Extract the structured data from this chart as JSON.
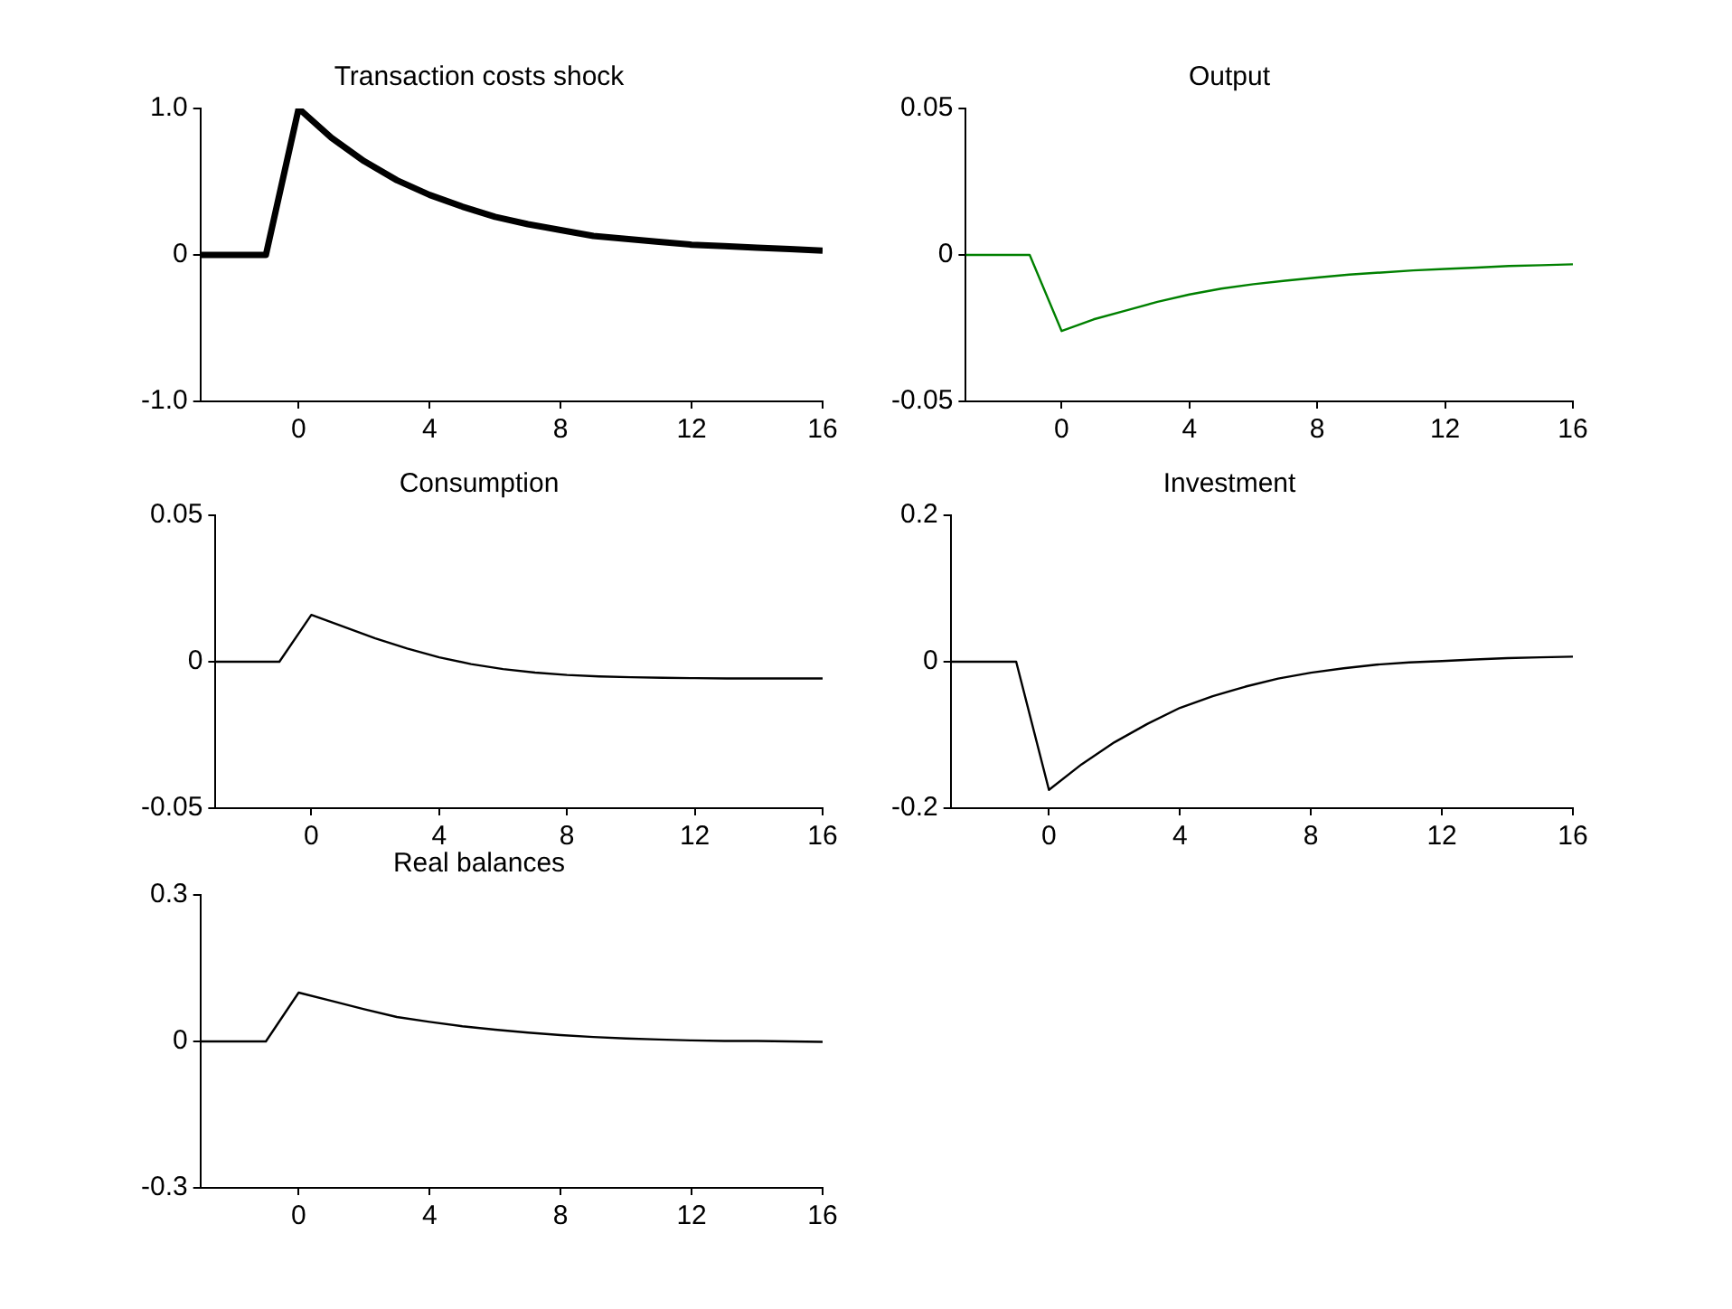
{
  "chart_data": [
    {
      "type": "line",
      "title": "Transaction costs shock",
      "x": [
        -3,
        -2,
        -1,
        0,
        1,
        2,
        3,
        4,
        5,
        6,
        7,
        8,
        9,
        10,
        11,
        12,
        13,
        14,
        15,
        16
      ],
      "values": [
        0,
        0,
        0,
        1.0,
        0.8,
        0.64,
        0.51,
        0.41,
        0.33,
        0.26,
        0.21,
        0.17,
        0.13,
        0.11,
        0.09,
        0.07,
        0.06,
        0.05,
        0.04,
        0.03
      ],
      "color": "#000000",
      "xlim": [
        -3,
        16
      ],
      "xticks": [
        0,
        4,
        8,
        12,
        16
      ],
      "ylim": [
        -1,
        1
      ],
      "yticks": [
        {
          "value": -1,
          "label": "-1.0"
        },
        0,
        {
          "value": 1,
          "label": "1.0"
        }
      ]
    },
    {
      "type": "line",
      "title": "Output",
      "x": [
        -3,
        -2,
        -1,
        0,
        1,
        2,
        3,
        4,
        5,
        6,
        7,
        8,
        9,
        10,
        11,
        12,
        13,
        14,
        15,
        16
      ],
      "values": [
        0,
        0,
        0,
        -0.026,
        -0.022,
        -0.019,
        -0.016,
        -0.0135,
        -0.0115,
        -0.01,
        -0.0088,
        -0.0077,
        -0.0067,
        -0.006,
        -0.0053,
        -0.0048,
        -0.0043,
        -0.0038,
        -0.0035,
        -0.0032
      ],
      "color": "#008000",
      "xlim": [
        -3,
        16
      ],
      "xticks": [
        0,
        4,
        8,
        12,
        16
      ],
      "ylim": [
        -0.05,
        0.05
      ],
      "yticks": [
        -0.05,
        0,
        0.05
      ]
    },
    {
      "type": "line",
      "title": "Consumption",
      "x": [
        -3,
        -2,
        -1,
        0,
        1,
        2,
        3,
        4,
        5,
        6,
        7,
        8,
        9,
        10,
        11,
        12,
        13,
        14,
        15,
        16
      ],
      "values": [
        0,
        0,
        0,
        0.016,
        0.012,
        0.008,
        0.0045,
        0.0015,
        -0.0008,
        -0.0025,
        -0.0037,
        -0.0045,
        -0.005,
        -0.0053,
        -0.0055,
        -0.0056,
        -0.0057,
        -0.0057,
        -0.0057,
        -0.0057
      ],
      "color": "#000000",
      "xlim": [
        -3,
        16
      ],
      "xticks": [
        0,
        4,
        8,
        12,
        16
      ],
      "ylim": [
        -0.05,
        0.05
      ],
      "yticks": [
        -0.05,
        0,
        0.05
      ]
    },
    {
      "type": "line",
      "title": "Investment",
      "x": [
        -3,
        -2,
        -1,
        0,
        1,
        2,
        3,
        4,
        5,
        6,
        7,
        8,
        9,
        10,
        11,
        12,
        13,
        14,
        15,
        16
      ],
      "values": [
        0,
        0,
        0,
        -0.175,
        -0.14,
        -0.11,
        -0.085,
        -0.063,
        -0.047,
        -0.034,
        -0.023,
        -0.015,
        -0.009,
        -0.004,
        -0.001,
        0.001,
        0.003,
        0.005,
        0.006,
        0.007
      ],
      "color": "#000000",
      "xlim": [
        -3,
        16
      ],
      "xticks": [
        0,
        4,
        8,
        12,
        16
      ],
      "ylim": [
        -0.2,
        0.2
      ],
      "yticks": [
        -0.2,
        0,
        0.2
      ]
    },
    {
      "type": "line",
      "title": "Real balances",
      "x": [
        -3,
        -2,
        -1,
        0,
        1,
        2,
        3,
        4,
        5,
        6,
        7,
        8,
        9,
        10,
        11,
        12,
        13,
        14,
        15,
        16
      ],
      "values": [
        0,
        0,
        0,
        0.1,
        0.083,
        0.066,
        0.05,
        0.04,
        0.031,
        0.024,
        0.018,
        0.013,
        0.009,
        0.006,
        0.004,
        0.002,
        0.001,
        0.001,
        0,
        -0.001
      ],
      "color": "#000000",
      "xlim": [
        -3,
        16
      ],
      "xticks": [
        0,
        4,
        8,
        12,
        16
      ],
      "ylim": [
        -0.3,
        0.3
      ],
      "yticks": [
        -0.3,
        0,
        0.3
      ]
    }
  ]
}
